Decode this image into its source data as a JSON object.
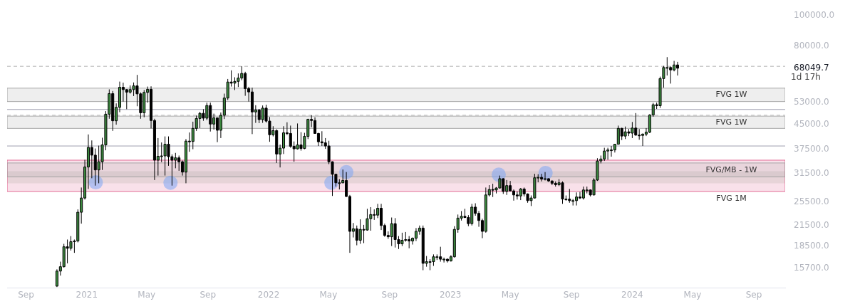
{
  "chart_data": {
    "type": "candlestick",
    "x": [
      "2020-11-02",
      "2020-11-09",
      "2020-11-16",
      "2020-11-23",
      "2020-11-30",
      "2020-12-07",
      "2020-12-14",
      "2020-12-21",
      "2020-12-28",
      "2021-01-04",
      "2021-01-11",
      "2021-01-18",
      "2021-01-25",
      "2021-02-01",
      "2021-02-08",
      "2021-02-15",
      "2021-02-22",
      "2021-03-01",
      "2021-03-08",
      "2021-03-15",
      "2021-03-22",
      "2021-03-29",
      "2021-04-05",
      "2021-04-12",
      "2021-04-19",
      "2021-04-26",
      "2021-05-03",
      "2021-05-10",
      "2021-05-17",
      "2021-05-24",
      "2021-05-31",
      "2021-06-07",
      "2021-06-14",
      "2021-06-21",
      "2021-06-28",
      "2021-07-05",
      "2021-07-12",
      "2021-07-19",
      "2021-07-26",
      "2021-08-02",
      "2021-08-09",
      "2021-08-16",
      "2021-08-23",
      "2021-08-30",
      "2021-09-06",
      "2021-09-13",
      "2021-09-20",
      "2021-09-27",
      "2021-10-04",
      "2021-10-11",
      "2021-10-18",
      "2021-10-25",
      "2021-11-01",
      "2021-11-08",
      "2021-11-15",
      "2021-11-22",
      "2021-11-29",
      "2021-12-06",
      "2021-12-13",
      "2021-12-20",
      "2021-12-27",
      "2022-01-03",
      "2022-01-10",
      "2022-01-17",
      "2022-01-24",
      "2022-01-31",
      "2022-02-07",
      "2022-02-14",
      "2022-02-21",
      "2022-02-28",
      "2022-03-07",
      "2022-03-14",
      "2022-03-21",
      "2022-03-28",
      "2022-04-04",
      "2022-04-11",
      "2022-04-18",
      "2022-04-25",
      "2022-05-02",
      "2022-05-09",
      "2022-05-16",
      "2022-05-23",
      "2022-05-30",
      "2022-06-06",
      "2022-06-13",
      "2022-06-20",
      "2022-06-27",
      "2022-07-04",
      "2022-07-11",
      "2022-07-18",
      "2022-07-25",
      "2022-08-01",
      "2022-08-08",
      "2022-08-15",
      "2022-08-22",
      "2022-08-29",
      "2022-09-05",
      "2022-09-12",
      "2022-09-19",
      "2022-09-26",
      "2022-10-03",
      "2022-10-10",
      "2022-10-17",
      "2022-10-24",
      "2022-10-31",
      "2022-11-07",
      "2022-11-14",
      "2022-11-21",
      "2022-11-28",
      "2022-12-05",
      "2022-12-12",
      "2022-12-19",
      "2022-12-26",
      "2023-01-02",
      "2023-01-09",
      "2023-01-16",
      "2023-01-23",
      "2023-01-30",
      "2023-02-06",
      "2023-02-13",
      "2023-02-20",
      "2023-02-27",
      "2023-03-06",
      "2023-03-13",
      "2023-03-20",
      "2023-03-27",
      "2023-04-03",
      "2023-04-10",
      "2023-04-17",
      "2023-04-24",
      "2023-05-01",
      "2023-05-08",
      "2023-05-15",
      "2023-05-22",
      "2023-05-29",
      "2023-06-05",
      "2023-06-12",
      "2023-06-19",
      "2023-06-26",
      "2023-07-03",
      "2023-07-10",
      "2023-07-17",
      "2023-07-24",
      "2023-07-31",
      "2023-08-07",
      "2023-08-14",
      "2023-08-21",
      "2023-08-28",
      "2023-09-04",
      "2023-09-11",
      "2023-09-18",
      "2023-09-25",
      "2023-10-02",
      "2023-10-09",
      "2023-10-16",
      "2023-10-23",
      "2023-10-30",
      "2023-11-06",
      "2023-11-13",
      "2023-11-20",
      "2023-11-27",
      "2023-12-04",
      "2023-12-11",
      "2023-12-18",
      "2023-12-25",
      "2024-01-01",
      "2024-01-08",
      "2024-01-15",
      "2024-01-22",
      "2024-01-29",
      "2024-02-05",
      "2024-02-12",
      "2024-02-19",
      "2024-02-26",
      "2024-03-04",
      "2024-03-11",
      "2024-03-18",
      "2024-03-25",
      "2024-04-01"
    ],
    "ohlc": [
      [
        13800,
        15600,
        13700,
        15400
      ],
      [
        15400,
        16500,
        14900,
        15900
      ],
      [
        15900,
        18800,
        15800,
        18400
      ],
      [
        18400,
        19400,
        16300,
        18200
      ],
      [
        18200,
        19900,
        17900,
        19100
      ],
      [
        19100,
        19400,
        17600,
        19200
      ],
      [
        19200,
        24200,
        19000,
        23700
      ],
      [
        23700,
        28400,
        21800,
        26300
      ],
      [
        26300,
        34800,
        26000,
        33000
      ],
      [
        33000,
        41900,
        28100,
        38100
      ],
      [
        38100,
        40100,
        30400,
        36000
      ],
      [
        36000,
        37800,
        28800,
        32300
      ],
      [
        32300,
        38600,
        29300,
        34300
      ],
      [
        34300,
        40900,
        32300,
        38800
      ],
      [
        38800,
        49700,
        37300,
        48600
      ],
      [
        48600,
        58300,
        47000,
        56500
      ],
      [
        56500,
        57600,
        43000,
        46300
      ],
      [
        46300,
        52600,
        45000,
        51100
      ],
      [
        51100,
        61700,
        49300,
        59200
      ],
      [
        59200,
        61200,
        53300,
        58200
      ],
      [
        58200,
        58400,
        50400,
        57100
      ],
      [
        57100,
        60000,
        56500,
        58200
      ],
      [
        58200,
        61300,
        55500,
        59800
      ],
      [
        59800,
        64800,
        51500,
        56400
      ],
      [
        56400,
        57000,
        47000,
        49100
      ],
      [
        49100,
        58000,
        47500,
        57000
      ],
      [
        57000,
        59500,
        52900,
        58300
      ],
      [
        58300,
        59600,
        43800,
        46400
      ],
      [
        46400,
        47000,
        30000,
        34700
      ],
      [
        34700,
        40800,
        31000,
        35700
      ],
      [
        35700,
        39500,
        34200,
        35800
      ],
      [
        35800,
        41300,
        31000,
        39000
      ],
      [
        39000,
        41300,
        33300,
        35600
      ],
      [
        35600,
        36200,
        28800,
        34700
      ],
      [
        34700,
        36600,
        32700,
        35300
      ],
      [
        35300,
        35900,
        32100,
        34300
      ],
      [
        34300,
        34600,
        31000,
        31800
      ],
      [
        31800,
        40500,
        29300,
        39900
      ],
      [
        39900,
        42500,
        36900,
        39800
      ],
      [
        39800,
        46000,
        37600,
        43800
      ],
      [
        43800,
        48100,
        43000,
        47100
      ],
      [
        47100,
        49400,
        43900,
        48900
      ],
      [
        48900,
        50400,
        46300,
        47200
      ],
      [
        47200,
        52900,
        46500,
        51800
      ],
      [
        51800,
        52900,
        42800,
        45200
      ],
      [
        45200,
        48800,
        43400,
        47300
      ],
      [
        47300,
        47400,
        39600,
        43200
      ],
      [
        43200,
        49200,
        40800,
        48200
      ],
      [
        48200,
        56500,
        46900,
        54700
      ],
      [
        54700,
        62900,
        53900,
        61500
      ],
      [
        61500,
        67000,
        59500,
        61000
      ],
      [
        61000,
        63700,
        58000,
        61800
      ],
      [
        61800,
        65500,
        59300,
        63300
      ],
      [
        63300,
        69000,
        62300,
        65500
      ],
      [
        65500,
        66300,
        55600,
        58600
      ],
      [
        58600,
        59400,
        53300,
        57200
      ],
      [
        57200,
        59000,
        42000,
        49400
      ],
      [
        49400,
        51900,
        45600,
        50100
      ],
      [
        50100,
        50500,
        45500,
        46700
      ],
      [
        46700,
        51800,
        45600,
        50800
      ],
      [
        50800,
        52100,
        45700,
        46200
      ],
      [
        46200,
        47600,
        39700,
        41800
      ],
      [
        41800,
        44500,
        41300,
        43100
      ],
      [
        43100,
        43500,
        34000,
        36300
      ],
      [
        36300,
        38900,
        32900,
        37900
      ],
      [
        37900,
        44500,
        36300,
        42400
      ],
      [
        42400,
        45800,
        41700,
        42200
      ],
      [
        42200,
        44700,
        38000,
        38400
      ],
      [
        38400,
        39800,
        34300,
        37700
      ],
      [
        37700,
        45400,
        37500,
        38800
      ],
      [
        38800,
        42600,
        37200,
        37800
      ],
      [
        37800,
        42400,
        37600,
        41300
      ],
      [
        41300,
        47000,
        40500,
        46800
      ],
      [
        46800,
        48200,
        44200,
        46400
      ],
      [
        46400,
        47500,
        42100,
        42200
      ],
      [
        42200,
        42400,
        38500,
        39700
      ],
      [
        39700,
        42900,
        38500,
        39400
      ],
      [
        39400,
        40800,
        37700,
        38500
      ],
      [
        38500,
        40000,
        33700,
        34300
      ],
      [
        34300,
        34400,
        26700,
        31300
      ],
      [
        31300,
        31300,
        28600,
        29400
      ],
      [
        29400,
        30200,
        28000,
        29400
      ],
      [
        29400,
        32400,
        29300,
        29900
      ],
      [
        29900,
        31800,
        26500,
        26600
      ],
      [
        26600,
        26900,
        17600,
        20600
      ],
      [
        20600,
        21900,
        19700,
        21000
      ],
      [
        21000,
        21500,
        18600,
        19300
      ],
      [
        19300,
        22500,
        18800,
        20900
      ],
      [
        20900,
        21600,
        18900,
        20800
      ],
      [
        20800,
        24300,
        20700,
        22600
      ],
      [
        22600,
        24600,
        20700,
        23300
      ],
      [
        23300,
        24200,
        22400,
        23200
      ],
      [
        23200,
        25200,
        22700,
        24400
      ],
      [
        24400,
        25200,
        20800,
        21500
      ],
      [
        21500,
        21800,
        19800,
        20000
      ],
      [
        20000,
        20600,
        19500,
        19800
      ],
      [
        19800,
        22800,
        18500,
        21800
      ],
      [
        21800,
        22700,
        18300,
        19400
      ],
      [
        19400,
        19900,
        18100,
        18800
      ],
      [
        18800,
        20400,
        18500,
        19300
      ],
      [
        19300,
        20500,
        19100,
        19400
      ],
      [
        19400,
        19900,
        18200,
        19200
      ],
      [
        19200,
        19700,
        18700,
        19600
      ],
      [
        19600,
        21100,
        19200,
        20600
      ],
      [
        20600,
        21500,
        20100,
        21100
      ],
      [
        21100,
        21500,
        15500,
        16300
      ],
      [
        16300,
        17200,
        15900,
        16500
      ],
      [
        16500,
        16800,
        15500,
        16500
      ],
      [
        16500,
        17400,
        16000,
        17100
      ],
      [
        17100,
        17400,
        16700,
        17100
      ],
      [
        17100,
        18400,
        16500,
        16800
      ],
      [
        16800,
        17000,
        16400,
        16800
      ],
      [
        16800,
        16900,
        16400,
        16600
      ],
      [
        16600,
        17300,
        16500,
        17100
      ],
      [
        17100,
        21400,
        17000,
        20900
      ],
      [
        20900,
        23300,
        20400,
        22700
      ],
      [
        22700,
        23900,
        22300,
        23000
      ],
      [
        23000,
        24300,
        22700,
        22800
      ],
      [
        22800,
        23200,
        21400,
        21800
      ],
      [
        21800,
        25200,
        21500,
        24600
      ],
      [
        24600,
        25300,
        23100,
        23500
      ],
      [
        23500,
        23900,
        21300,
        22300
      ],
      [
        22300,
        22600,
        19600,
        20600
      ],
      [
        20600,
        28400,
        20400,
        26900
      ],
      [
        26900,
        28900,
        26600,
        28000
      ],
      [
        28000,
        29200,
        26500,
        27900
      ],
      [
        27900,
        28500,
        27200,
        28300
      ],
      [
        28300,
        31000,
        28200,
        30300
      ],
      [
        30300,
        30400,
        27100,
        27600
      ],
      [
        27600,
        30000,
        26900,
        28800
      ],
      [
        28800,
        29800,
        27700,
        27700
      ],
      [
        27700,
        28000,
        25800,
        26900
      ],
      [
        26900,
        27600,
        26000,
        26700
      ],
      [
        26700,
        28300,
        25900,
        28100
      ],
      [
        28100,
        28400,
        26600,
        27100
      ],
      [
        27100,
        27200,
        25400,
        25800
      ],
      [
        25800,
        26800,
        24800,
        26300
      ],
      [
        26300,
        31400,
        26200,
        30500
      ],
      [
        30500,
        31300,
        29500,
        30600
      ],
      [
        30600,
        31400,
        29700,
        30200
      ],
      [
        30200,
        31800,
        29900,
        30300
      ],
      [
        30300,
        30400,
        29600,
        29800
      ],
      [
        29800,
        29900,
        28900,
        29300
      ],
      [
        29300,
        29700,
        28600,
        29000
      ],
      [
        29000,
        30200,
        28700,
        29400
      ],
      [
        29400,
        29700,
        25200,
        26100
      ],
      [
        26100,
        26800,
        25800,
        26100
      ],
      [
        26100,
        28100,
        25400,
        25800
      ],
      [
        25800,
        26100,
        24900,
        25800
      ],
      [
        25800,
        27400,
        24900,
        26500
      ],
      [
        26500,
        27500,
        26100,
        26300
      ],
      [
        26300,
        28600,
        26000,
        27900
      ],
      [
        27900,
        28600,
        27200,
        27900
      ],
      [
        27900,
        28000,
        26600,
        26900
      ],
      [
        26900,
        30400,
        26800,
        30000
      ],
      [
        30000,
        35200,
        29800,
        34500
      ],
      [
        34500,
        35900,
        33900,
        35000
      ],
      [
        35000,
        38000,
        34500,
        37100
      ],
      [
        37100,
        38000,
        34800,
        37400
      ],
      [
        37400,
        38500,
        35600,
        37400
      ],
      [
        37400,
        39000,
        36700,
        39000
      ],
      [
        39000,
        44700,
        39000,
        43800
      ],
      [
        43800,
        44000,
        40200,
        41400
      ],
      [
        41400,
        44400,
        40500,
        42700
      ],
      [
        42700,
        43600,
        41400,
        42300
      ],
      [
        42300,
        45900,
        40800,
        43900
      ],
      [
        43900,
        49000,
        41500,
        41700
      ],
      [
        41700,
        43600,
        40300,
        41600
      ],
      [
        41600,
        42200,
        38500,
        42000
      ],
      [
        42000,
        43900,
        41400,
        42600
      ],
      [
        42600,
        48600,
        42300,
        48300
      ],
      [
        48300,
        52800,
        47700,
        52100
      ],
      [
        52100,
        52900,
        50500,
        51700
      ],
      [
        51700,
        64000,
        50900,
        63100
      ],
      [
        63100,
        69200,
        59000,
        68400
      ],
      [
        68400,
        73800,
        64500,
        68400
      ],
      [
        68400,
        68900,
        60800,
        67200
      ],
      [
        67200,
        71800,
        66500,
        69700
      ],
      [
        69700,
        71300,
        64500,
        68049.7
      ]
    ],
    "series": [
      {
        "type": "scatter",
        "marker": "circle",
        "color": "#7ea6f4",
        "x": [
          "2021-01-19",
          "2021-06-18",
          "2022-05-07",
          "2022-06-06",
          "2023-04-08",
          "2023-07-11"
        ],
        "values": [
          29500,
          29400,
          29400,
          31800,
          31200,
          31600
        ]
      }
    ],
    "xlim": [
      "2020-07-25",
      "2024-11-03"
    ],
    "xticks": [
      {
        "value": "2020-09-01",
        "label": "Sep"
      },
      {
        "value": "2021-01-01",
        "label": "2021"
      },
      {
        "value": "2021-05-01",
        "label": "May"
      },
      {
        "value": "2021-09-01",
        "label": "Sep"
      },
      {
        "value": "2022-01-01",
        "label": "2022"
      },
      {
        "value": "2022-05-01",
        "label": "May"
      },
      {
        "value": "2022-09-01",
        "label": "Sep"
      },
      {
        "value": "2023-01-01",
        "label": "2023"
      },
      {
        "value": "2023-05-01",
        "label": "May"
      },
      {
        "value": "2023-09-01",
        "label": "Sep"
      },
      {
        "value": "2024-01-01",
        "label": "2024"
      },
      {
        "value": "2024-05-01",
        "label": "May"
      },
      {
        "value": "2024-09-01",
        "label": "Sep"
      }
    ],
    "log": "y",
    "ylim": [
      13600,
      100000
    ],
    "yticks": [
      {
        "value": 15700,
        "label": "15700.0"
      },
      {
        "value": 18500,
        "label": "18500.0"
      },
      {
        "value": 21500,
        "label": "21500.0"
      },
      {
        "value": 25500,
        "label": "25500.0"
      },
      {
        "value": 31500,
        "label": "31500.0"
      },
      {
        "value": 37500,
        "label": "37500.0"
      },
      {
        "value": 45000,
        "label": "45000.0"
      },
      {
        "value": 53000,
        "label": "53000.0"
      },
      {
        "value": 68049.7,
        "label": "68049.7"
      },
      {
        "value": 80000,
        "label": "80000.0"
      },
      {
        "value": 100000,
        "label": "100000.0"
      }
    ],
    "annotations": [
      "1d 17h"
    ],
    "bands": [
      {
        "axis": "y",
        "from": 29300,
        "to": 32000,
        "color": "#dfeadf"
      },
      {
        "axis": "y",
        "from": 27600,
        "to": 34700,
        "label": "FVG 1M",
        "color": "#e05a8a"
      },
      {
        "axis": "y",
        "from": 30700,
        "to": 34000,
        "label": "FVG/MB - 1W",
        "color": "#9e9e9e"
      },
      {
        "axis": "y",
        "from": 53300,
        "to": 58800,
        "label": "FVG 1W",
        "color": "#9e9e9e"
      },
      {
        "axis": "y",
        "from": 43800,
        "to": 47900,
        "label": "FVG 1W",
        "color": "#9e9e9e"
      }
    ],
    "ref_lines": [
      {
        "axis": "y",
        "value": 69000,
        "line_style": "dashed",
        "color": "#b0b0b0"
      },
      {
        "axis": "y",
        "value": 48200,
        "line_style": "dashed",
        "color": "#b0b0b0"
      },
      {
        "axis": "y",
        "value": 50300,
        "color": "#9e9eb0"
      },
      {
        "axis": "y",
        "value": 38500,
        "color": "#9e9eb0"
      }
    ]
  }
}
